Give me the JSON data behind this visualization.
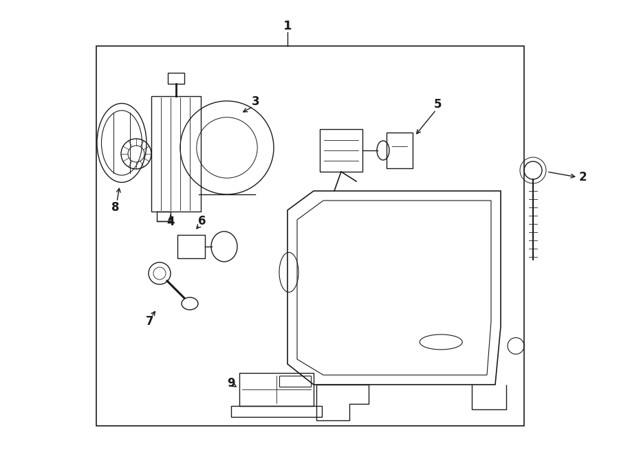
{
  "bg_color": "#ffffff",
  "line_color": "#1a1a1a",
  "lw": 1.0
}
